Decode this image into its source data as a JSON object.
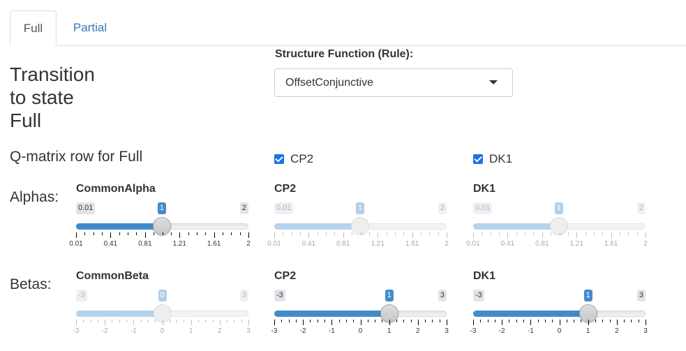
{
  "tabs": [
    {
      "label": "Full",
      "active": true
    },
    {
      "label": "Partial",
      "active": false
    }
  ],
  "heading": {
    "line1": "Transition",
    "line2": "to state",
    "line3": "Full"
  },
  "structure_function": {
    "label": "Structure Function (Rule):",
    "selected": "OffsetConjunctive"
  },
  "qmatrix": {
    "label": "Q-matrix row for Full",
    "items": [
      {
        "label": "CP2",
        "checked": true
      },
      {
        "label": "DK1",
        "checked": true
      }
    ]
  },
  "alphas": {
    "label": "Alphas:",
    "sliders": [
      {
        "name": "CommonAlpha",
        "min": 0.01,
        "max": 2,
        "value": 1,
        "min_label": "0.01",
        "max_label": "2",
        "value_label": "1",
        "disabled": false,
        "major_ticks": [
          "0.01",
          "0.41",
          "0.81",
          "1.21",
          "1.61",
          "2"
        ]
      },
      {
        "name": "CP2",
        "min": 0.01,
        "max": 2,
        "value": 1,
        "min_label": "0.01",
        "max_label": "2",
        "value_label": "1",
        "disabled": true,
        "major_ticks": [
          "0.01",
          "0.41",
          "0.81",
          "1.21",
          "1.61",
          "2"
        ]
      },
      {
        "name": "DK1",
        "min": 0.01,
        "max": 2,
        "value": 1,
        "min_label": "0.01",
        "max_label": "2",
        "value_label": "1",
        "disabled": true,
        "major_ticks": [
          "0.01",
          "0.41",
          "0.81",
          "1.21",
          "1.61",
          "2"
        ]
      }
    ]
  },
  "betas": {
    "label": "Betas:",
    "sliders": [
      {
        "name": "CommonBeta",
        "min": -3,
        "max": 3,
        "value": 0,
        "min_label": "-3",
        "max_label": "3",
        "value_label": "0",
        "disabled": true,
        "major_ticks": [
          "-3",
          "-2",
          "-1",
          "0",
          "1",
          "2",
          "3"
        ]
      },
      {
        "name": "CP2",
        "min": -3,
        "max": 3,
        "value": 1,
        "min_label": "-3",
        "max_label": "3",
        "value_label": "1",
        "disabled": false,
        "major_ticks": [
          "-3",
          "-2",
          "-1",
          "0",
          "1",
          "2",
          "3"
        ]
      },
      {
        "name": "DK1",
        "min": -3,
        "max": 3,
        "value": 1,
        "min_label": "-3",
        "max_label": "3",
        "value_label": "1",
        "disabled": false,
        "major_ticks": [
          "-3",
          "-2",
          "-1",
          "0",
          "1",
          "2",
          "3"
        ]
      }
    ]
  }
}
